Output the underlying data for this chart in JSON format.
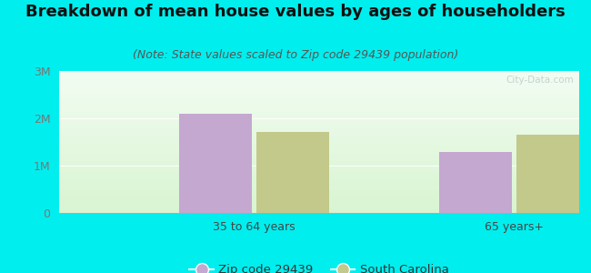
{
  "title": "Breakdown of mean house values by ages of householders",
  "subtitle": "(Note: State values scaled to Zip code 29439 population)",
  "categories": [
    "35 to 64 years",
    "65 years+"
  ],
  "zip_values": [
    2100000,
    1280000
  ],
  "state_values": [
    1720000,
    1650000
  ],
  "zip_color": "#C4A8D0",
  "state_color": "#C2C98A",
  "ylim": [
    0,
    3000000
  ],
  "yticks": [
    0,
    1000000,
    2000000,
    3000000
  ],
  "ytick_labels": [
    "0",
    "1M",
    "2M",
    "3M"
  ],
  "legend_zip_label": "Zip code 29439",
  "legend_state_label": "South Carolina",
  "bg_color": "#00EEEE",
  "title_fontsize": 13,
  "subtitle_fontsize": 9,
  "bar_width": 0.28,
  "watermark": "City-Data.com",
  "grid_color": "#e8d8e8",
  "tick_color": "#777777",
  "xtick_fontsize": 9,
  "ytick_fontsize": 9
}
